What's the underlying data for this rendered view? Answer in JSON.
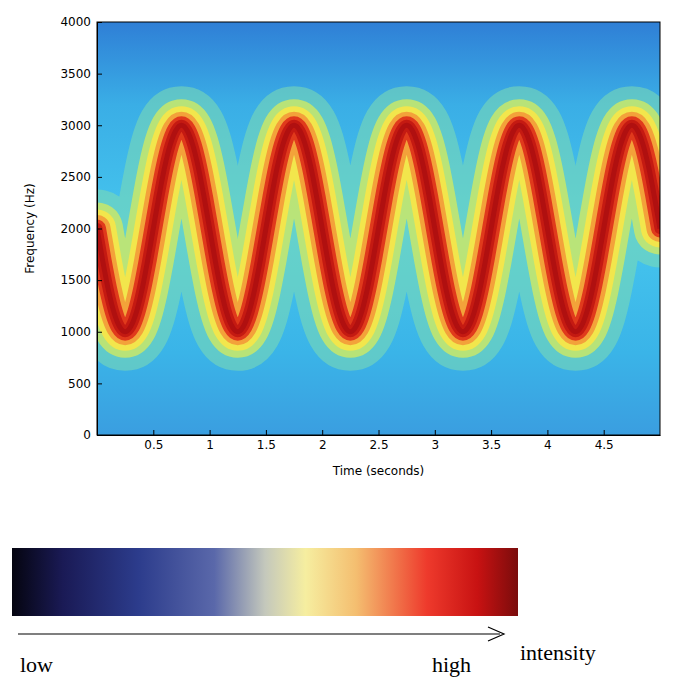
{
  "chart_data": {
    "type": "line",
    "xlabel": "Time (seconds)",
    "ylabel": "Frequency (Hz)",
    "xlim": [
      0,
      5
    ],
    "ylim": [
      0,
      4000
    ],
    "xticks": [
      0.5,
      1,
      1.5,
      2,
      2.5,
      3,
      3.5,
      4,
      4.5
    ],
    "yticks": [
      0,
      500,
      1000,
      1500,
      2000,
      2500,
      3000,
      3500,
      4000
    ],
    "color": "#b01010",
    "line_style": "solid",
    "x": [
      0,
      0.05,
      0.1,
      0.15,
      0.2,
      0.25,
      0.3,
      0.35,
      0.4,
      0.45,
      0.5,
      0.55,
      0.6,
      0.65,
      0.7,
      0.75,
      0.8,
      0.85,
      0.9,
      0.95,
      1,
      1.05,
      1.1,
      1.15,
      1.2,
      1.25,
      1.3,
      1.35,
      1.4,
      1.45,
      1.5,
      1.55,
      1.6,
      1.65,
      1.7,
      1.75,
      1.8,
      1.85,
      1.9,
      1.95,
      2,
      2.05,
      2.1,
      2.15,
      2.2,
      2.25,
      2.3,
      2.35,
      2.4,
      2.45,
      2.5,
      2.55,
      2.6,
      2.65,
      2.7,
      2.75,
      2.8,
      2.85,
      2.9,
      2.95,
      3,
      3.05,
      3.1,
      3.15,
      3.2,
      3.25,
      3.3,
      3.35,
      3.4,
      3.45,
      3.5,
      3.55,
      3.6,
      3.65,
      3.7,
      3.75,
      3.8,
      3.85,
      3.9,
      3.95,
      4,
      4.05,
      4.1,
      4.15,
      4.2,
      4.25,
      4.3,
      4.35,
      4.4,
      4.45,
      4.5,
      4.55,
      4.6,
      4.65,
      4.7,
      4.75,
      4.8,
      4.85,
      4.9,
      4.95,
      5
    ],
    "values": [
      2000,
      1690,
      1410,
      1190,
      1050,
      1000,
      1050,
      1190,
      1410,
      1690,
      2000,
      2310,
      2590,
      2810,
      2950,
      3000,
      2950,
      2810,
      2590,
      2310,
      2000,
      1690,
      1410,
      1190,
      1050,
      1000,
      1050,
      1190,
      1410,
      1690,
      2000,
      2310,
      2590,
      2810,
      2950,
      3000,
      2950,
      2810,
      2590,
      2310,
      2000,
      1690,
      1410,
      1190,
      1050,
      1000,
      1050,
      1190,
      1410,
      1690,
      2000,
      2310,
      2590,
      2810,
      2950,
      3000,
      2950,
      2810,
      2590,
      2310,
      2000,
      1690,
      1410,
      1190,
      1050,
      1000,
      1050,
      1190,
      1410,
      1690,
      2000,
      2310,
      2590,
      2810,
      2950,
      3000,
      2950,
      2810,
      2590,
      2310,
      2000,
      1690,
      1410,
      1190,
      1050,
      1000,
      1050,
      1190,
      1410,
      1690,
      2000,
      2310,
      2590,
      2810,
      2950,
      3000,
      2950,
      2810,
      2590,
      2310,
      2000
    ],
    "colorbar": {
      "title": "intensity",
      "low": "low",
      "high": "high"
    }
  }
}
